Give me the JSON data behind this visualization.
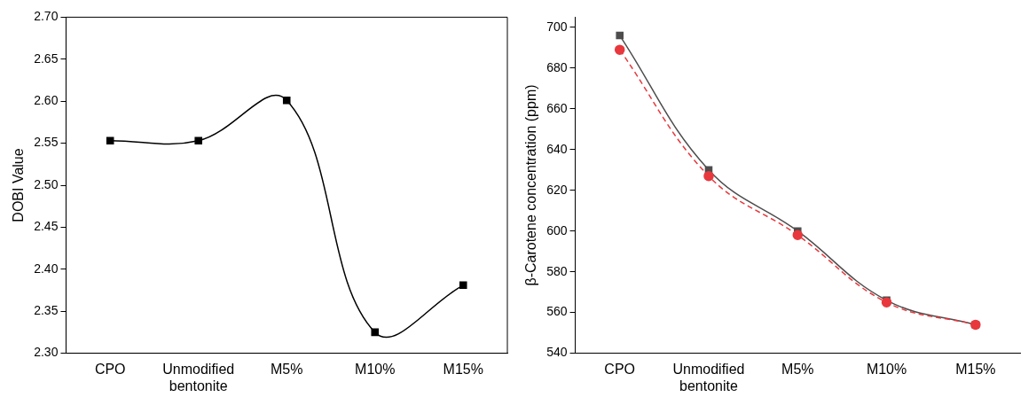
{
  "chart_data": [
    {
      "type": "line",
      "ylabel": "DOBI Value",
      "categories": [
        "CPO",
        "Unmodified bentonite",
        "M5%",
        "M10%",
        "M15%"
      ],
      "series": [
        {
          "color": "#000000",
          "values": [
            2.553,
            2.553,
            2.601,
            2.325,
            2.381
          ],
          "marker": "square",
          "line_style": "solid"
        }
      ],
      "ylim": [
        2.3,
        2.7
      ],
      "yticks": [
        {
          "value": 2.3,
          "label": "2.30"
        },
        {
          "value": 2.35,
          "label": "2.35"
        },
        {
          "value": 2.4,
          "label": "2.40"
        },
        {
          "value": 2.45,
          "label": "2.45"
        },
        {
          "value": 2.5,
          "label": "2.50"
        },
        {
          "value": 2.55,
          "label": "2.55"
        },
        {
          "value": 2.6,
          "label": "2.60"
        },
        {
          "value": 2.65,
          "label": "2.65"
        },
        {
          "value": 2.7,
          "label": "2.70"
        }
      ],
      "grid": false,
      "legend": false
    },
    {
      "type": "line",
      "ylabel": "β-Carotene concentration (ppm)",
      "categories": [
        "CPO",
        "Unmodified bentonite",
        "M5%",
        "M10%",
        "M15%"
      ],
      "series": [
        {
          "color": "#4d4d4d",
          "values": [
            696,
            630,
            600,
            566,
            554
          ],
          "marker": "square",
          "line_style": "solid"
        },
        {
          "color": "#e8383d",
          "values": [
            689,
            627,
            598,
            565,
            554
          ],
          "marker": "circle",
          "line_style": "dashed"
        }
      ],
      "ylim": [
        540,
        705
      ],
      "yticks": [
        540,
        560,
        580,
        600,
        620,
        640,
        660,
        680,
        700
      ],
      "grid": false,
      "legend": false
    }
  ]
}
